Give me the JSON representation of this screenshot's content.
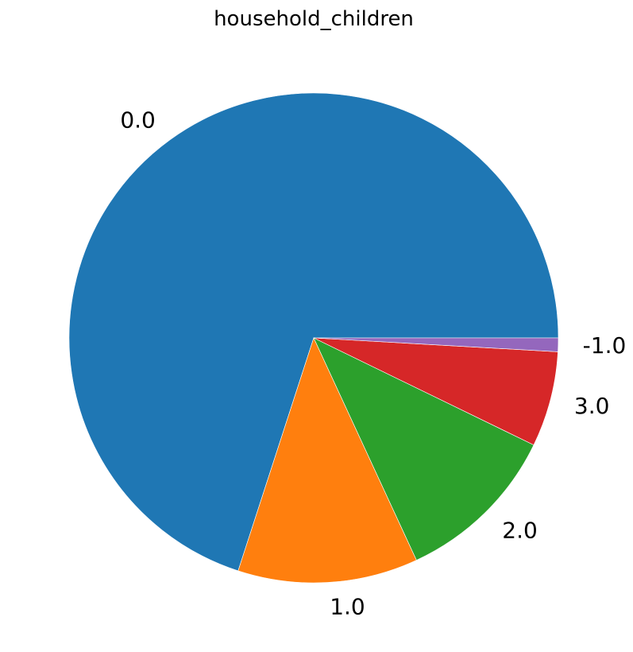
{
  "chart_data": {
    "type": "pie",
    "title": "household_children",
    "categories": [
      "0.0",
      "1.0",
      "2.0",
      "3.0",
      "-1.0"
    ],
    "values": [
      70.0,
      11.9,
      10.9,
      6.3,
      0.9
    ],
    "start_angle_deg": 0,
    "direction": "counterclockwise",
    "colors": [
      "#1f77b4",
      "#ff7f0e",
      "#2ca02c",
      "#d62728",
      "#9467bd"
    ]
  }
}
